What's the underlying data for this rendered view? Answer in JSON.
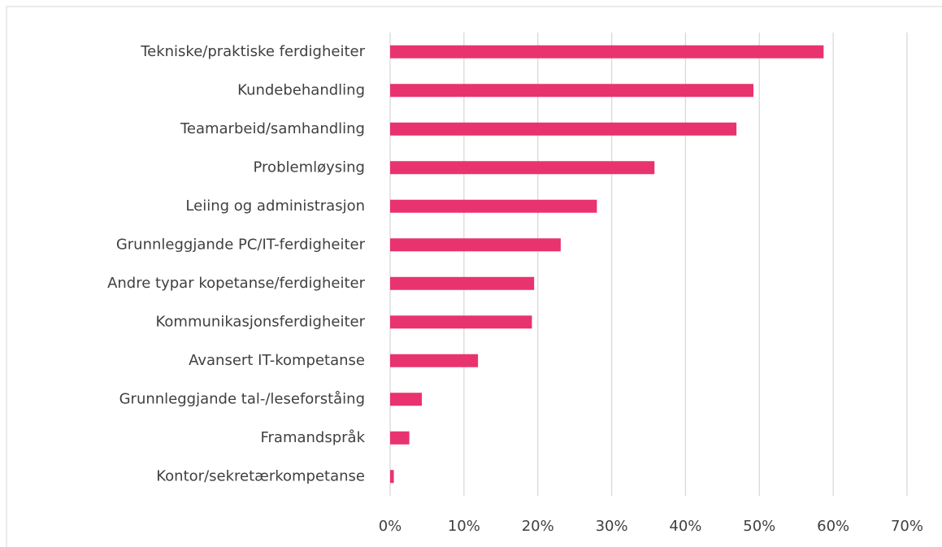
{
  "chart_data": {
    "type": "hbar",
    "categories": [
      "Tekniske/praktiske ferdigheiter",
      "Kundebehandling",
      "Teamarbeid/samhandling",
      "Problemløysing",
      "Leiing og administrasjon",
      "Grunnleggjande PC/IT-ferdigheiter",
      "Andre typar kopetanse/ferdigheiter",
      "Kommunikasjonsferdigheiter",
      "Avansert IT-kompetanse",
      "Grunnleggjande tal-/leseforståing",
      "Framandspråk",
      "Kontor/sekretærkompetanse"
    ],
    "values": [
      58.7,
      49.2,
      46.9,
      35.8,
      28.0,
      23.1,
      19.5,
      19.2,
      11.9,
      4.3,
      2.6,
      0.5
    ],
    "color": "#e8336f",
    "xlim": [
      0,
      70
    ],
    "xticks": [
      {
        "value": 0,
        "label": "0%"
      },
      {
        "value": 10,
        "label": "10%"
      },
      {
        "value": 20,
        "label": "20%"
      },
      {
        "value": 30,
        "label": "30%"
      },
      {
        "value": 40,
        "label": "40%"
      },
      {
        "value": 50,
        "label": "50%"
      },
      {
        "value": 60,
        "label": "60%"
      },
      {
        "value": 70,
        "label": "70%"
      }
    ],
    "grid": true
  }
}
